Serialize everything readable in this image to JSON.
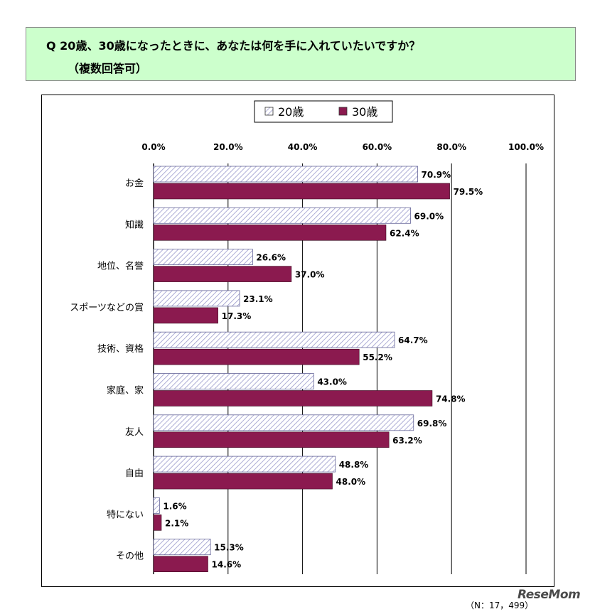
{
  "question": {
    "line1": "Q  20歳、30歳になったときに、あなたは何を手に入れていたいですか？",
    "line2": "（複数回答可）"
  },
  "sample_note": "（N：17，499）",
  "watermark": "ReseMom",
  "colors": {
    "series_20": "#9999cc",
    "series_30": "#8b1a4f",
    "question_bg": "#ccffcc"
  },
  "chart_data": {
    "type": "bar",
    "orientation": "horizontal",
    "categories": [
      "お金",
      "知識",
      "地位、名誉",
      "スポーツなどの賞",
      "技術、資格",
      "家庭、家",
      "友人",
      "自由",
      "特にない",
      "その他"
    ],
    "series": [
      {
        "name": "20歳",
        "pattern": "hatched",
        "values": [
          70.9,
          69.0,
          26.6,
          23.1,
          64.7,
          43.0,
          69.8,
          48.8,
          1.6,
          15.3
        ],
        "labels": [
          "70.9%",
          "69.0%",
          "26.6%",
          "23.1%",
          "64.7%",
          "43.0%",
          "69.8%",
          "48.8%",
          "1.6%",
          "15.3%"
        ]
      },
      {
        "name": "30歳",
        "pattern": "solid",
        "values": [
          79.5,
          62.4,
          37.0,
          17.3,
          55.2,
          74.8,
          63.2,
          48.0,
          2.1,
          14.6
        ],
        "labels": [
          "79.5%",
          "62.4%",
          "37.0%",
          "17.3%",
          "55.2%",
          "74.8%",
          "63.2%",
          "48.0%",
          "2.1%",
          "14.6%"
        ]
      }
    ],
    "xlim": [
      0,
      100
    ],
    "xticks": [
      0,
      20,
      40,
      60,
      80,
      100
    ],
    "xtick_labels": [
      "0.0%",
      "20.0%",
      "40.0%",
      "60.0%",
      "80.0%",
      "100.0%"
    ],
    "grid": true,
    "legend_position": "top"
  }
}
